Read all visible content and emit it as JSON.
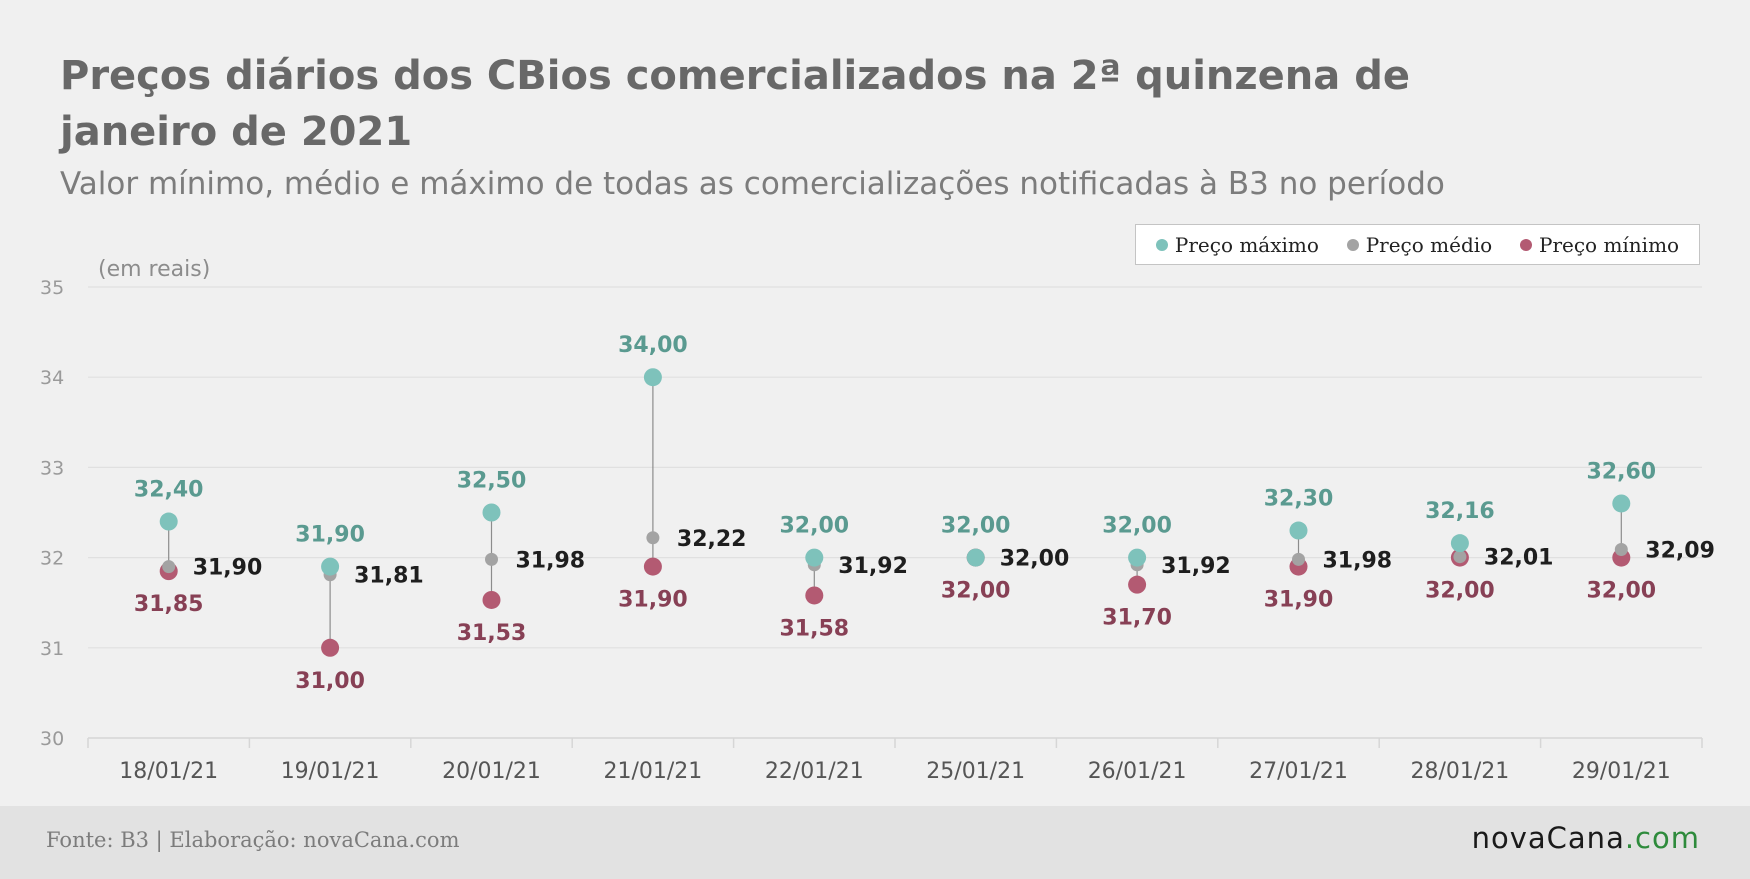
{
  "header": {
    "title": "Preços diários dos CBios comercializados na 2ª quinzena de janeiro de 2021",
    "subtitle": "Valor mínimo, médio e máximo de todas as comercializações notificadas à B3 no período",
    "units": "(em reais)"
  },
  "legend": {
    "max_label": "Preço máximo",
    "avg_label": "Preço médio",
    "min_label": "Preço mínimo"
  },
  "footer": {
    "source": "Fonte: B3 | Elaboração: novaCana.com",
    "logo_main": "novaCana",
    "logo_tld": ".com"
  },
  "colors": {
    "max_dot": "#7ec2bb",
    "max_label": "#5a9a90",
    "avg_dot": "#a3a3a3",
    "avg_label": "#1e1e1e",
    "min_dot": "#b35a72",
    "min_label": "#874055",
    "range_line": "#8c8c8c"
  },
  "chart_data": {
    "type": "scatter",
    "title": "Preços diários dos CBios comercializados na 2ª quinzena de janeiro de 2021",
    "ylabel": "(em reais)",
    "ylim": [
      30,
      35
    ],
    "yticks": [
      "30",
      "31",
      "32",
      "33",
      "34",
      "35"
    ],
    "grid": true,
    "legend_position": "top-right",
    "categories": [
      "18/01/21",
      "19/01/21",
      "20/01/21",
      "21/01/21",
      "22/01/21",
      "25/01/21",
      "26/01/21",
      "27/01/21",
      "28/01/21",
      "29/01/21"
    ],
    "series": [
      {
        "name": "Preço máximo",
        "values": [
          32.4,
          31.9,
          32.5,
          34.0,
          32.0,
          32.0,
          32.0,
          32.3,
          32.16,
          32.6
        ],
        "labels": [
          "32,40",
          "31,90",
          "32,50",
          "34,00",
          "32,00",
          "32,00",
          "32,00",
          "32,30",
          "32,16",
          "32,60"
        ]
      },
      {
        "name": "Preço médio",
        "values": [
          31.9,
          31.81,
          31.98,
          32.22,
          31.92,
          32.0,
          31.92,
          31.98,
          32.01,
          32.09
        ],
        "labels": [
          "31,90",
          "31,81",
          "31,98",
          "32,22",
          "31,92",
          "32,00",
          "31,92",
          "31,98",
          "32,01",
          "32,09"
        ]
      },
      {
        "name": "Preço mínimo",
        "values": [
          31.85,
          31.0,
          31.53,
          31.9,
          31.58,
          32.0,
          31.7,
          31.9,
          32.0,
          32.0
        ],
        "labels": [
          "31,85",
          "31,00",
          "31,53",
          "31,90",
          "31,58",
          "32,00",
          "31,70",
          "31,90",
          "32,00",
          "32,00"
        ]
      }
    ]
  }
}
